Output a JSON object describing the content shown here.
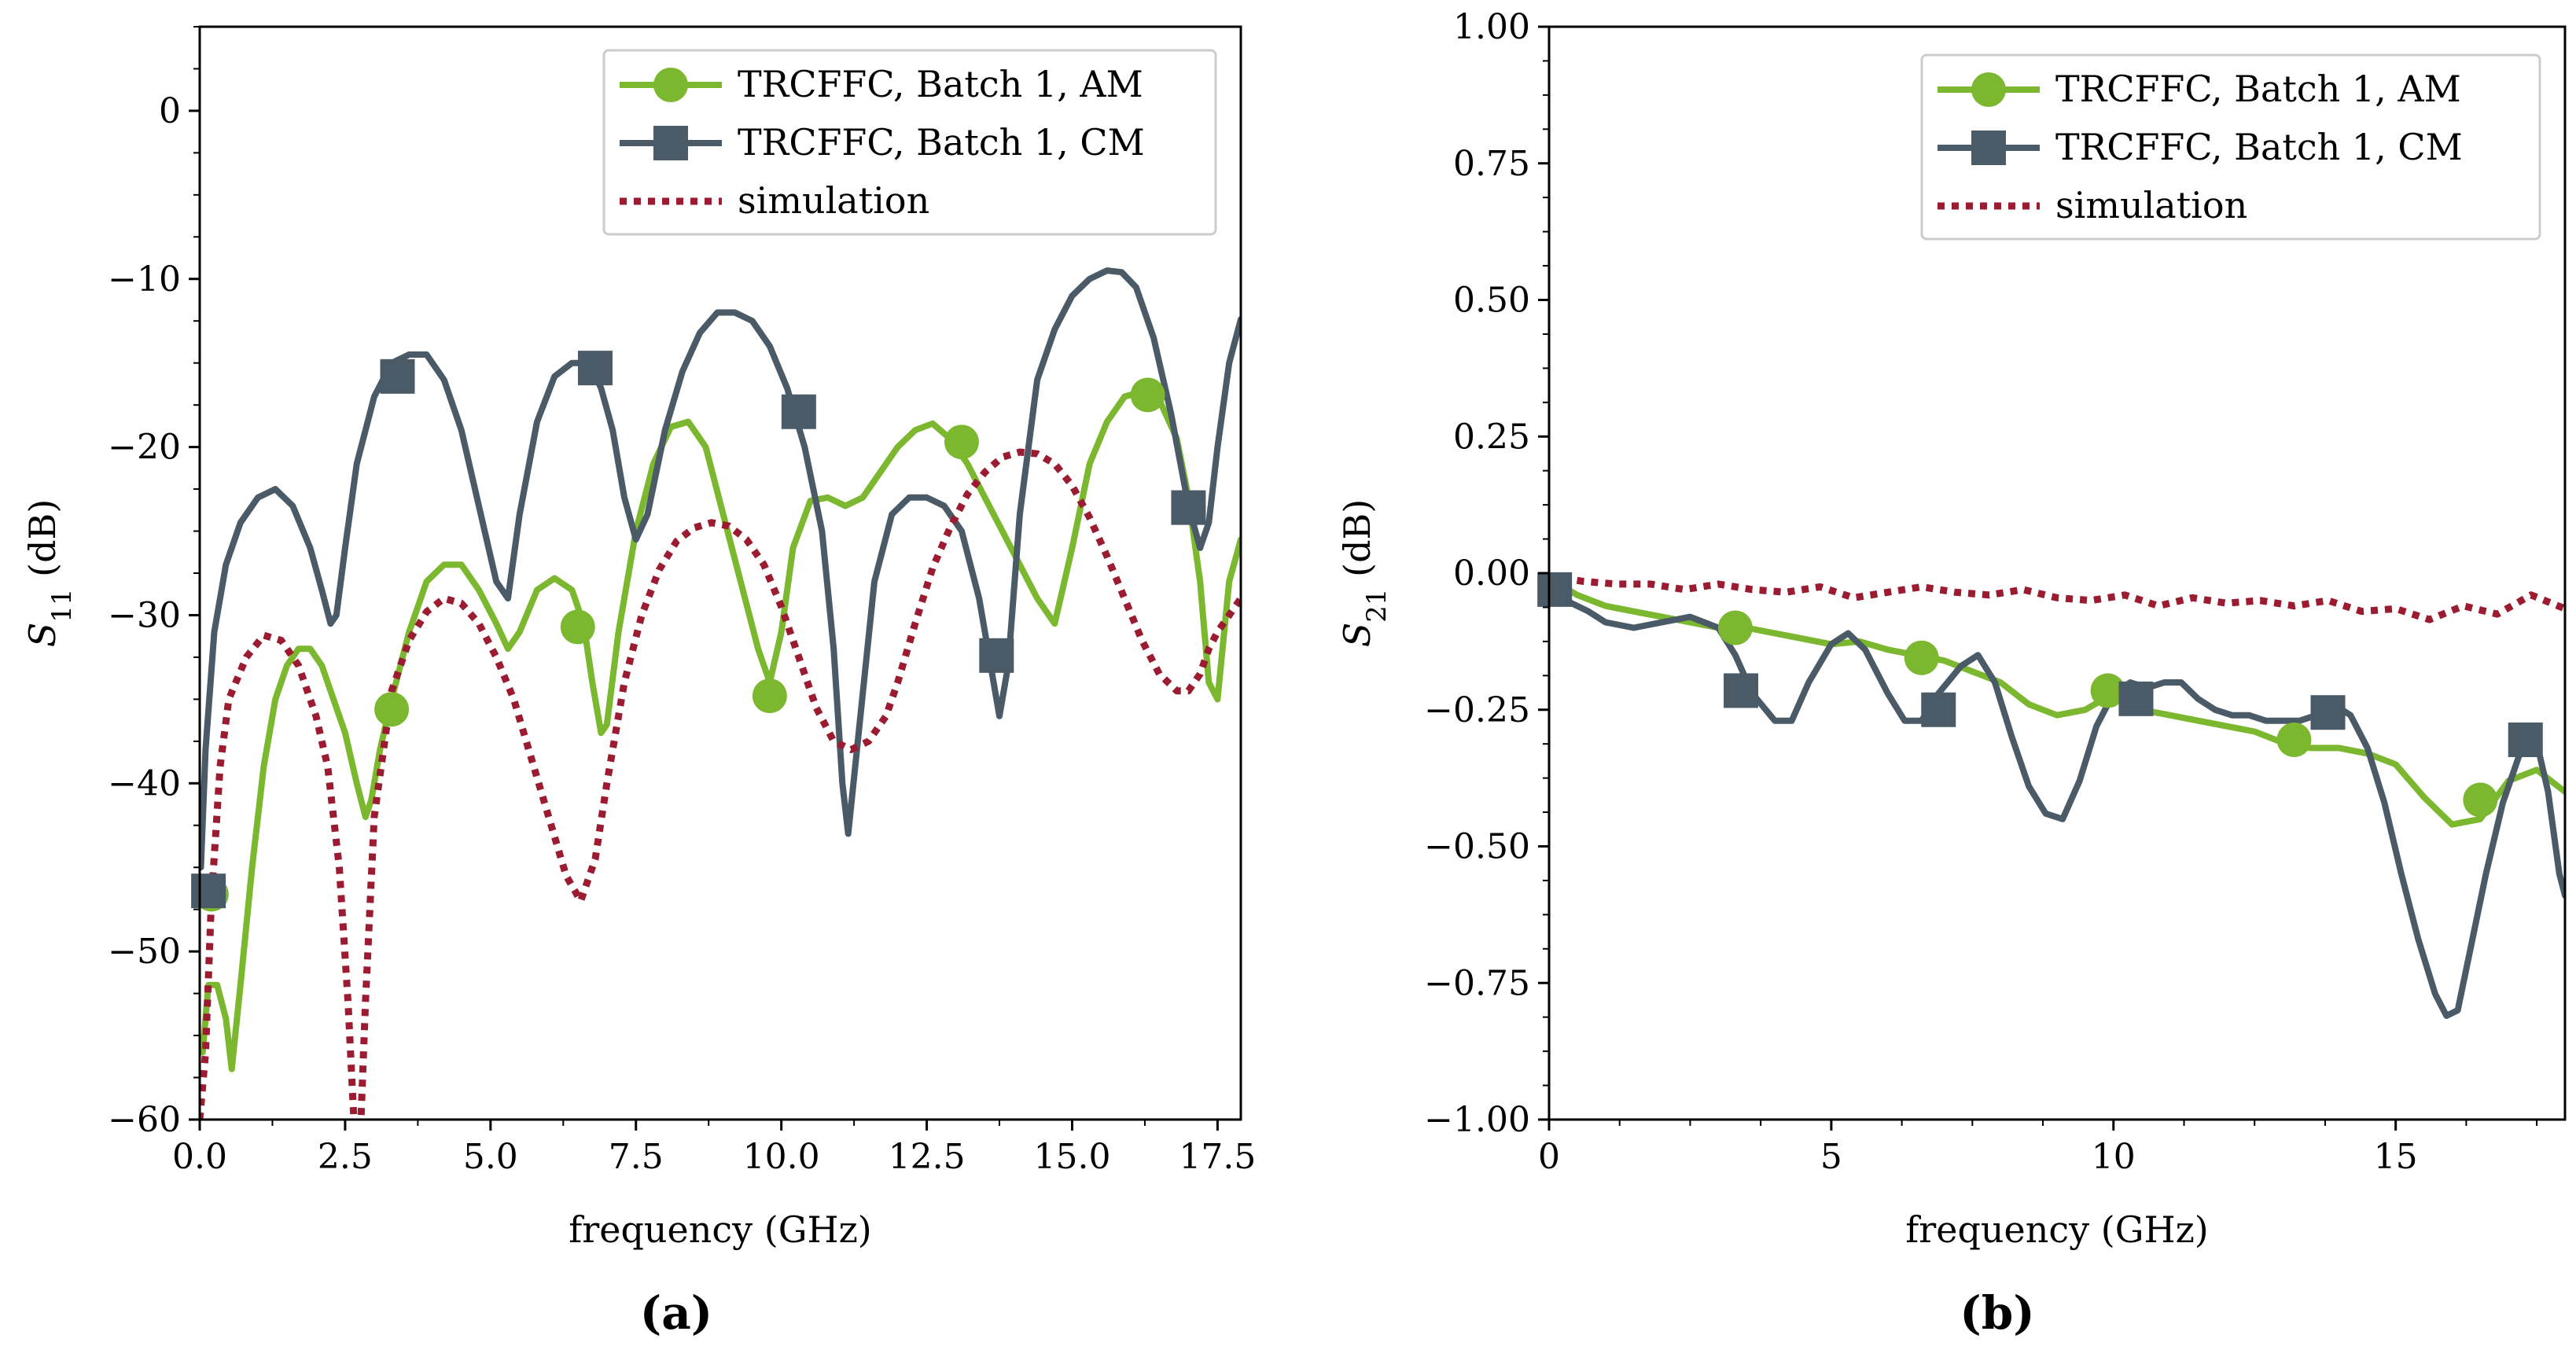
{
  "colors": {
    "am": "#7cb82f",
    "cm": "#4a5a66",
    "sim": "#9b1b30"
  },
  "chart_data": [
    {
      "panel": "(a)",
      "type": "line",
      "xlabel": "frequency (GHz)",
      "ylabel": "S11 (dB)",
      "ylabel_main": "S",
      "ylabel_sub": "11",
      "ylabel_unit": " (dB)",
      "xlim": [
        0,
        17.9
      ],
      "ylim": [
        -60,
        5
      ],
      "x_ticks": [
        0,
        2.5,
        5,
        7.5,
        10,
        12.5,
        15,
        17.5
      ],
      "x_tick_labels": [
        "0.0",
        "2.5",
        "5.0",
        "7.5",
        "10.0",
        "12.5",
        "15.0",
        "17.5"
      ],
      "y_ticks": [
        0,
        -10,
        -20,
        -30,
        -40,
        -50,
        -60
      ],
      "y_tick_labels": [
        "0",
        "−10",
        "−20",
        "−30",
        "−40",
        "−50",
        "−60"
      ],
      "legend_position": "top-right",
      "series": [
        {
          "name": "TRCFFC, Batch 1, AM",
          "style": "solid",
          "marker": "circle",
          "color_key": "am",
          "x": [
            0.05,
            0.15,
            0.3,
            0.45,
            0.55,
            0.7,
            0.9,
            1.1,
            1.3,
            1.5,
            1.7,
            1.9,
            2.1,
            2.3,
            2.5,
            2.7,
            2.85,
            2.95,
            3.1,
            3.3,
            3.6,
            3.9,
            4.2,
            4.5,
            4.8,
            5.1,
            5.3,
            5.5,
            5.8,
            6.1,
            6.4,
            6.6,
            6.75,
            6.9,
            7.0,
            7.2,
            7.5,
            7.8,
            8.1,
            8.4,
            8.7,
            9.0,
            9.3,
            9.6,
            9.8,
            10.0,
            10.2,
            10.5,
            10.8,
            11.1,
            11.4,
            11.7,
            12.0,
            12.3,
            12.6,
            12.9,
            13.2,
            13.5,
            13.8,
            14.1,
            14.4,
            14.7,
            15.0,
            15.3,
            15.6,
            15.9,
            16.2,
            16.5,
            16.8,
            17.0,
            17.2,
            17.35,
            17.5,
            17.7,
            17.9
          ],
          "y": [
            -56,
            -52,
            -52,
            -54,
            -57,
            -52,
            -45,
            -39,
            -35,
            -33,
            -32,
            -32,
            -33,
            -35,
            -37,
            -40,
            -42,
            -41,
            -38,
            -35,
            -31,
            -28,
            -27,
            -27,
            -28.5,
            -30.5,
            -32,
            -31,
            -28.5,
            -27.8,
            -28.5,
            -30.5,
            -34,
            -37,
            -36.5,
            -31,
            -25,
            -21,
            -18.8,
            -18.5,
            -20,
            -24,
            -28,
            -32,
            -34,
            -31,
            -26,
            -23.2,
            -23,
            -23.5,
            -23,
            -21.5,
            -20,
            -19,
            -18.6,
            -19.5,
            -21,
            -23,
            -25,
            -27,
            -29,
            -30.5,
            -26,
            -21,
            -18.5,
            -17,
            -16.7,
            -17.2,
            -19.5,
            -23,
            -28,
            -34,
            -35,
            -28,
            -25.5
          ],
          "markers": [
            [
              0.2,
              -46.6
            ],
            [
              3.3,
              -35.6
            ],
            [
              6.5,
              -30.7
            ],
            [
              9.8,
              -34.8
            ],
            [
              13.1,
              -19.7
            ],
            [
              16.3,
              -16.9
            ]
          ]
        },
        {
          "name": "TRCFFC, Batch 1, CM",
          "style": "solid",
          "marker": "square",
          "color_key": "cm",
          "x": [
            0.02,
            0.1,
            0.25,
            0.45,
            0.7,
            1.0,
            1.3,
            1.6,
            1.9,
            2.1,
            2.25,
            2.35,
            2.5,
            2.7,
            3.0,
            3.3,
            3.6,
            3.9,
            4.2,
            4.5,
            4.8,
            5.1,
            5.3,
            5.5,
            5.8,
            6.1,
            6.4,
            6.7,
            6.9,
            7.1,
            7.3,
            7.5,
            7.7,
            8.0,
            8.3,
            8.6,
            8.9,
            9.2,
            9.5,
            9.8,
            10.1,
            10.4,
            10.7,
            10.9,
            11.05,
            11.15,
            11.3,
            11.6,
            11.9,
            12.2,
            12.5,
            12.8,
            13.1,
            13.4,
            13.6,
            13.75,
            13.9,
            14.1,
            14.4,
            14.7,
            15.0,
            15.3,
            15.6,
            15.85,
            16.1,
            16.4,
            16.7,
            17.0,
            17.2,
            17.35,
            17.5,
            17.7,
            17.9
          ],
          "y": [
            -45,
            -38,
            -31,
            -27,
            -24.5,
            -23,
            -22.5,
            -23.5,
            -26,
            -28.5,
            -30.5,
            -30,
            -26,
            -21,
            -17,
            -15,
            -14.5,
            -14.5,
            -16,
            -19,
            -23.5,
            -28,
            -29,
            -24,
            -18.5,
            -15.8,
            -15,
            -15,
            -16.5,
            -19,
            -23,
            -25.5,
            -24,
            -19,
            -15.5,
            -13.2,
            -12,
            -12,
            -12.5,
            -14,
            -16.5,
            -20,
            -25,
            -32,
            -40,
            -43,
            -38,
            -28,
            -24,
            -23,
            -23,
            -23.5,
            -25,
            -29,
            -33,
            -36,
            -33,
            -24,
            -16,
            -13,
            -11,
            -10,
            -9.5,
            -9.6,
            -10.5,
            -13.5,
            -18,
            -23.5,
            -26,
            -24.5,
            -20,
            -15,
            -12.4
          ],
          "markers": [
            [
              0.15,
              -46.4
            ],
            [
              3.4,
              -15.8
            ],
            [
              6.8,
              -15.3
            ],
            [
              10.3,
              -17.9
            ],
            [
              13.7,
              -32.4
            ],
            [
              17.0,
              -23.6
            ]
          ]
        },
        {
          "name": "simulation",
          "style": "dotted",
          "marker": "none",
          "color_key": "sim",
          "x": [
            0.0,
            0.1,
            0.2,
            0.35,
            0.5,
            0.8,
            1.1,
            1.4,
            1.7,
            2.0,
            2.2,
            2.4,
            2.55,
            2.65,
            2.75,
            2.85,
            3.0,
            3.3,
            3.6,
            3.9,
            4.2,
            4.5,
            4.8,
            5.1,
            5.4,
            5.7,
            6.0,
            6.3,
            6.55,
            6.8,
            7.0,
            7.3,
            7.6,
            7.9,
            8.2,
            8.5,
            8.8,
            9.1,
            9.4,
            9.7,
            10.0,
            10.3,
            10.6,
            10.9,
            11.2,
            11.5,
            11.8,
            12.0,
            12.3,
            12.6,
            12.9,
            13.2,
            13.5,
            13.8,
            14.1,
            14.4,
            14.7,
            15.0,
            15.3,
            15.6,
            15.9,
            16.2,
            16.5,
            16.8,
            17.0,
            17.2,
            17.35,
            17.5,
            17.7,
            17.9
          ],
          "y": [
            -60,
            -56,
            -47,
            -39,
            -35,
            -32.5,
            -31.2,
            -31.5,
            -33,
            -36,
            -39,
            -45,
            -53,
            -60,
            -62,
            -53,
            -42,
            -34.5,
            -31.5,
            -29.8,
            -29,
            -29.3,
            -30.5,
            -32.5,
            -35,
            -38.5,
            -42,
            -45.5,
            -47,
            -44.5,
            -40,
            -34,
            -30,
            -27.3,
            -25.6,
            -24.8,
            -24.5,
            -24.7,
            -25.5,
            -27,
            -29.5,
            -32.5,
            -35.5,
            -37.5,
            -38,
            -37.5,
            -36,
            -34,
            -30.5,
            -27.2,
            -24.8,
            -22.8,
            -21.5,
            -20.6,
            -20.3,
            -20.4,
            -21,
            -22.3,
            -24.2,
            -26.5,
            -29,
            -31.5,
            -33.5,
            -34.5,
            -34.5,
            -33.5,
            -32,
            -31,
            -30,
            -29
          ]
        }
      ]
    },
    {
      "panel": "(b)",
      "type": "line",
      "xlabel": "frequency (GHz)",
      "ylabel": "S21 (dB)",
      "ylabel_main": "S",
      "ylabel_sub": "21",
      "ylabel_unit": " (dB)",
      "xlim": [
        0,
        18
      ],
      "ylim": [
        -1.0,
        1.0
      ],
      "x_ticks": [
        0,
        5,
        10,
        15
      ],
      "x_tick_labels": [
        "0",
        "5",
        "10",
        "15"
      ],
      "y_ticks": [
        1.0,
        0.75,
        0.5,
        0.25,
        0.0,
        -0.25,
        -0.5,
        -0.75,
        -1.0
      ],
      "y_tick_labels": [
        "1.00",
        "0.75",
        "0.50",
        "0.25",
        "0.00",
        "−0.25",
        "−0.50",
        "−0.75",
        "−1.00"
      ],
      "legend_position": "top-right",
      "series": [
        {
          "name": "TRCFFC, Batch 1, AM",
          "style": "solid",
          "marker": "circle",
          "color_key": "am",
          "x": [
            0,
            0.5,
            1,
            1.5,
            2,
            2.5,
            3,
            3.5,
            4,
            4.5,
            5,
            5.5,
            6,
            6.5,
            7,
            7.5,
            8,
            8.5,
            9,
            9.5,
            10,
            10.5,
            11,
            11.5,
            12,
            12.5,
            13,
            13.5,
            14,
            14.5,
            15,
            15.5,
            16,
            16.5,
            17,
            17.5,
            18
          ],
          "y": [
            -0.01,
            -0.04,
            -0.06,
            -0.07,
            -0.08,
            -0.09,
            -0.1,
            -0.1,
            -0.11,
            -0.12,
            -0.13,
            -0.125,
            -0.14,
            -0.15,
            -0.16,
            -0.18,
            -0.2,
            -0.24,
            -0.26,
            -0.25,
            -0.22,
            -0.25,
            -0.26,
            -0.27,
            -0.28,
            -0.29,
            -0.31,
            -0.32,
            -0.32,
            -0.33,
            -0.35,
            -0.41,
            -0.46,
            -0.45,
            -0.38,
            -0.36,
            -0.4
          ],
          "markers": [
            [
              3.3,
              -0.1
            ],
            [
              6.6,
              -0.155
            ],
            [
              9.9,
              -0.215
            ],
            [
              13.2,
              -0.305
            ],
            [
              16.5,
              -0.415
            ]
          ]
        },
        {
          "name": "TRCFFC, Batch 1, CM",
          "style": "solid",
          "marker": "square",
          "color_key": "cm",
          "x": [
            0,
            0.3,
            0.7,
            1,
            1.5,
            2,
            2.5,
            3,
            3.3,
            3.6,
            4,
            4.3,
            4.6,
            5,
            5.3,
            5.6,
            6,
            6.3,
            6.6,
            6.9,
            7.3,
            7.6,
            7.9,
            8.2,
            8.5,
            8.8,
            9.1,
            9.4,
            9.7,
            10,
            10.3,
            10.6,
            10.9,
            11.2,
            11.5,
            11.8,
            12.1,
            12.4,
            12.7,
            13,
            13.3,
            13.6,
            13.9,
            14.2,
            14.5,
            14.8,
            15.1,
            15.4,
            15.7,
            15.9,
            16.1,
            16.3,
            16.6,
            16.9,
            17.2,
            17.5,
            17.7,
            17.9,
            18
          ],
          "y": [
            -0.03,
            -0.05,
            -0.07,
            -0.09,
            -0.1,
            -0.09,
            -0.08,
            -0.1,
            -0.15,
            -0.22,
            -0.27,
            -0.27,
            -0.2,
            -0.13,
            -0.11,
            -0.14,
            -0.22,
            -0.27,
            -0.27,
            -0.22,
            -0.17,
            -0.15,
            -0.2,
            -0.3,
            -0.39,
            -0.44,
            -0.45,
            -0.38,
            -0.28,
            -0.22,
            -0.2,
            -0.21,
            -0.2,
            -0.2,
            -0.23,
            -0.25,
            -0.26,
            -0.26,
            -0.27,
            -0.27,
            -0.27,
            -0.26,
            -0.24,
            -0.26,
            -0.32,
            -0.42,
            -0.55,
            -0.67,
            -0.77,
            -0.81,
            -0.8,
            -0.7,
            -0.55,
            -0.42,
            -0.33,
            -0.31,
            -0.4,
            -0.55,
            -0.59
          ],
          "markers": [
            [
              0.1,
              -0.03
            ],
            [
              3.4,
              -0.215
            ],
            [
              6.9,
              -0.25
            ],
            [
              10.4,
              -0.23
            ],
            [
              13.8,
              -0.255
            ],
            [
              17.3,
              -0.305
            ]
          ]
        },
        {
          "name": "simulation",
          "style": "dotted",
          "marker": "none",
          "color_key": "sim",
          "x": [
            0,
            0.6,
            1.2,
            1.8,
            2.4,
            3,
            3.6,
            4.2,
            4.8,
            5.4,
            6,
            6.6,
            7.2,
            7.8,
            8.4,
            9,
            9.6,
            10.2,
            10.8,
            11.4,
            12,
            12.6,
            13.2,
            13.8,
            14.4,
            15,
            15.6,
            16.2,
            16.8,
            17.4,
            18
          ],
          "y": [
            -0.005,
            -0.015,
            -0.02,
            -0.02,
            -0.03,
            -0.02,
            -0.03,
            -0.035,
            -0.025,
            -0.045,
            -0.035,
            -0.025,
            -0.035,
            -0.04,
            -0.03,
            -0.045,
            -0.05,
            -0.04,
            -0.06,
            -0.045,
            -0.055,
            -0.05,
            -0.06,
            -0.05,
            -0.07,
            -0.065,
            -0.085,
            -0.06,
            -0.075,
            -0.04,
            -0.065
          ]
        }
      ]
    }
  ]
}
